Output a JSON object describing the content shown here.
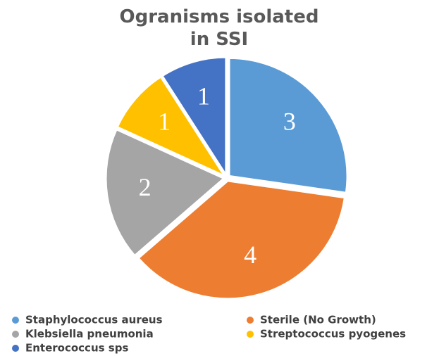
{
  "chart_data": {
    "type": "pie",
    "title": "Ogranisms isolated in SSI",
    "categories": [
      "Staphylococcus aureus",
      "Sterile (No Growth)",
      "Klebsiella pneumonia",
      "Streptococcus pyogenes",
      "Enterococcus sps"
    ],
    "values": [
      3,
      4,
      2,
      1,
      1
    ],
    "colors": [
      "#5b9bd5",
      "#ed7d31",
      "#a5a5a5",
      "#ffc000",
      "#4472c4"
    ]
  }
}
